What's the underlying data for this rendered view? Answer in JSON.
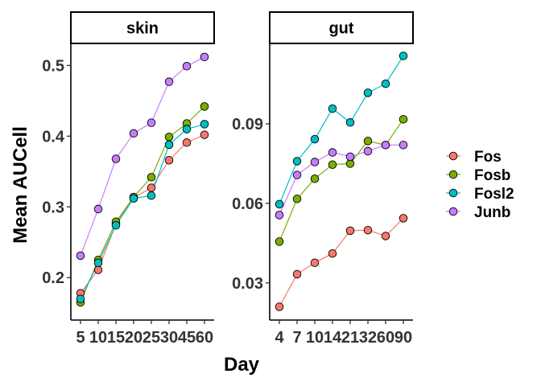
{
  "chart_data": {
    "type": "line",
    "xlabel": "Day",
    "ylabel": "Mean AUCell",
    "grid": false,
    "legend_position": "right",
    "series_colors": {
      "Fos": "#F8766D",
      "Fosb": "#7CAE00",
      "Fosl2": "#00BFC4",
      "Junb": "#C77CFF"
    },
    "legend": [
      "Fos",
      "Fosb",
      "Fosl2",
      "Junb"
    ],
    "panels": [
      {
        "strip": "skin",
        "categories": [
          "5",
          "10",
          "15",
          "20",
          "25",
          "30",
          "45",
          "60"
        ],
        "ylim": [
          0.14,
          0.53
        ],
        "yticks": [
          "0.2",
          "0.3",
          "0.4",
          "0.5"
        ],
        "series": [
          {
            "name": "Fos",
            "values": [
              0.178,
              0.211,
              0.276,
              0.313,
              0.327,
              0.366,
              0.391,
              0.402
            ]
          },
          {
            "name": "Fosb",
            "values": [
              0.165,
              0.225,
              0.279,
              0.314,
              0.342,
              0.399,
              0.418,
              0.442
            ]
          },
          {
            "name": "Fosl2",
            "values": [
              0.17,
              0.221,
              0.274,
              0.312,
              0.316,
              0.388,
              0.41,
              0.417
            ]
          },
          {
            "name": "Junb",
            "values": [
              0.231,
              0.297,
              0.368,
              0.404,
              0.419,
              0.477,
              0.499,
              0.512
            ]
          }
        ]
      },
      {
        "strip": "gut",
        "categories": [
          "4",
          "7",
          "10",
          "14",
          "21",
          "32",
          "60",
          "90"
        ],
        "ylim": [
          0.016,
          0.12
        ],
        "yticks": [
          "0.03",
          "0.06",
          "0.09"
        ],
        "series": [
          {
            "name": "Fos",
            "values": [
              0.021,
              0.0333,
              0.0376,
              0.0411,
              0.0497,
              0.0499,
              0.0477,
              0.0544
            ]
          },
          {
            "name": "Fosb",
            "values": [
              0.0456,
              0.0617,
              0.0693,
              0.0746,
              0.075,
              0.0835,
              0.082,
              0.0917
            ]
          },
          {
            "name": "Fosl2",
            "values": [
              0.0597,
              0.0759,
              0.0842,
              0.0957,
              0.0905,
              0.1017,
              0.1051,
              0.1156
            ]
          },
          {
            "name": "Junb",
            "values": [
              0.0556,
              0.0707,
              0.0756,
              0.0792,
              0.0776,
              0.0797,
              0.082,
              0.082
            ]
          }
        ]
      }
    ]
  }
}
